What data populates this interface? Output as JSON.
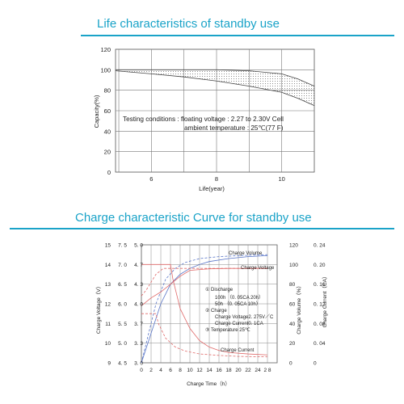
{
  "chart_data": [
    {
      "type": "area",
      "title": "Life characteristics of standby use",
      "xlabel": "Life(year)",
      "ylabel": "Capacity(%)",
      "xlim": [
        4.9,
        11
      ],
      "ylim": [
        0,
        120
      ],
      "x_ticks": [
        "6",
        "8",
        "10"
      ],
      "y_ticks": [
        "0",
        "20",
        "40",
        "60",
        "80",
        "100",
        "120"
      ],
      "grid": true,
      "series": [
        {
          "values_x": [
            4.9,
            6,
            7,
            8,
            9,
            10,
            10.5,
            11
          ],
          "values_y": [
            100,
            100,
            100,
            100,
            99,
            96,
            91,
            84
          ]
        },
        {
          "values_x": [
            4.9,
            6,
            7,
            8,
            9,
            10,
            10.5,
            11
          ],
          "values_y": [
            99,
            96,
            93,
            89,
            84,
            78,
            72,
            65
          ]
        }
      ],
      "annotation": {
        "line1": "Testing  conditions : floating voltage : 2.27 to 2.30V  Cell",
        "line2": "ambient temperature : 25℃(77  F)"
      }
    },
    {
      "type": "line",
      "title": "Charge characteristic Curve for standby use",
      "xlabel": "Charge Time（h）",
      "x_ticks": [
        "0",
        "2",
        "4",
        "6",
        "8",
        "10",
        "12",
        "14",
        "16",
        "18",
        "20",
        "22",
        "24",
        "2 8"
      ],
      "xlim": [
        0,
        28
      ],
      "grid": true,
      "left_axes": [
        {
          "label": "Charge Voltage（V）",
          "ticks": [
            "15",
            "14",
            "13",
            "12",
            "11",
            "10",
            "9"
          ]
        },
        {
          "ticks": [
            "7. 5",
            "7. 0",
            "6. 5",
            "6. 0",
            "5. 5",
            "5. 0",
            "4. 5"
          ]
        },
        {
          "ticks": [
            "5. 0",
            "4. 7",
            "4. 3",
            "4. 0",
            "3. 7",
            "3. 3",
            "3. 0"
          ]
        }
      ],
      "right_axes": [
        {
          "label": "Charge Volume（%）",
          "ticks": [
            "120",
            "100",
            "80",
            "60",
            "40",
            "20",
            "0"
          ]
        },
        {
          "label": "Charge Current（CA）",
          "ticks": [
            "0. 24",
            "0. 20",
            "0. 16",
            "0. 12",
            "0. 08",
            "0. 04",
            "0"
          ]
        }
      ],
      "series": [
        {
          "name": "Charge Volume",
          "x": [
            0,
            2,
            4,
            6,
            8,
            10,
            12,
            14,
            18,
            22,
            26
          ],
          "y": [
            0,
            30,
            60,
            80,
            90,
            96,
            100,
            103,
            106,
            108,
            109
          ],
          "axis": "volume"
        },
        {
          "name": "Charge Volume",
          "x": [
            0,
            1.5,
            3,
            5,
            7,
            9,
            12,
            16,
            20,
            26
          ],
          "y": [
            0,
            30,
            60,
            85,
            96,
            102,
            106,
            108,
            109,
            110
          ],
          "axis": "volume"
        },
        {
          "name": "Charge Voltage",
          "x": [
            0,
            1,
            2,
            4,
            6,
            8,
            10,
            14,
            18,
            26
          ],
          "y": [
            11.9,
            12.1,
            12.3,
            12.6,
            13,
            13.4,
            13.7,
            13.78,
            13.8,
            13.8
          ],
          "axis": "voltage"
        },
        {
          "name": "Charge Voltage",
          "x": [
            0,
            1,
            2,
            3,
            4.5,
            6,
            10,
            26
          ],
          "y": [
            12.4,
            12.7,
            13.1,
            13.5,
            13.8,
            13.8,
            13.8,
            13.8
          ],
          "axis": "voltage"
        },
        {
          "name": "Charge Current",
          "x": [
            0,
            6,
            6.5,
            8,
            10,
            12,
            14,
            16,
            18,
            22,
            26
          ],
          "y": [
            0.2,
            0.2,
            0.17,
            0.11,
            0.07,
            0.045,
            0.032,
            0.025,
            0.021,
            0.018,
            0.016
          ],
          "axis": "current"
        },
        {
          "name": "Charge Current",
          "x": [
            0,
            3,
            3.5,
            5,
            7,
            9,
            12,
            16,
            20,
            26
          ],
          "y": [
            0.1,
            0.1,
            0.08,
            0.05,
            0.032,
            0.024,
            0.018,
            0.015,
            0.013,
            0.012
          ],
          "axis": "current"
        }
      ],
      "labels": {
        "volume": "Charge Volume",
        "voltage": "Charge Voltage",
        "current": "Charge  Current"
      },
      "legend": {
        "l1": "①  Discharge",
        "l2": "100h  （0. 05CA   20h）",
        "l3": "50h  （0. 05CA   10h）",
        "l4": "②  Charge",
        "l5": "Charge Voltage2. 275V／C",
        "l6": "Charge  Current0. 1CA",
        "l7": "③  Temperature  25℃"
      }
    }
  ],
  "colors": {
    "title": "#1aa3c8",
    "red": "#e06a6a",
    "blue": "#5a76c8",
    "grid": "#888888"
  }
}
